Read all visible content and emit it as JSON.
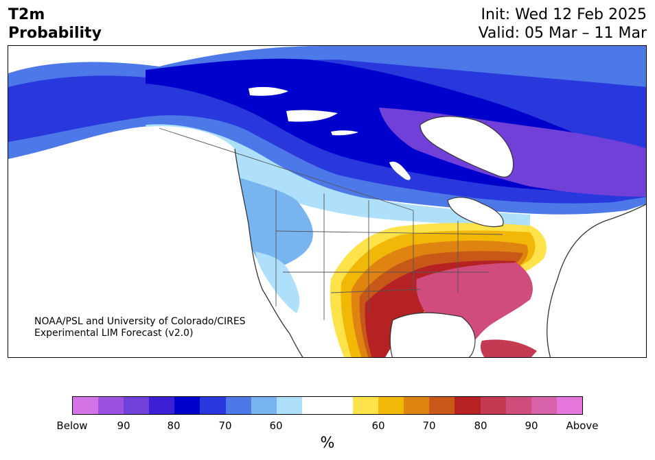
{
  "header": {
    "variable": "T2m",
    "product": "Probability",
    "init": "Init: Wed 12 Feb 2025",
    "valid": "Valid: 05 Mar – 11 Mar"
  },
  "map": {
    "credit_line1": "NOAA/PSL and University of Colorado/CIRES",
    "credit_line2": "Experimental LIM Forecast (v2.0)",
    "region": "North America"
  },
  "colorbar": {
    "colors": [
      "#d473e6",
      "#9b52e0",
      "#7040d8",
      "#3a1fd4",
      "#0000cc",
      "#2838dc",
      "#4d78e8",
      "#78b4f0",
      "#aee0fc",
      "#ffffff",
      "#ffffff",
      "#fde24a",
      "#f2b808",
      "#df8410",
      "#c85818",
      "#b62224",
      "#c43a52",
      "#d04c7c",
      "#d862aa",
      "#e476dc"
    ],
    "tick_labels": [
      "Below",
      "90",
      "80",
      "70",
      "60",
      "60",
      "70",
      "80",
      "90",
      "Above"
    ],
    "unit": "%"
  }
}
